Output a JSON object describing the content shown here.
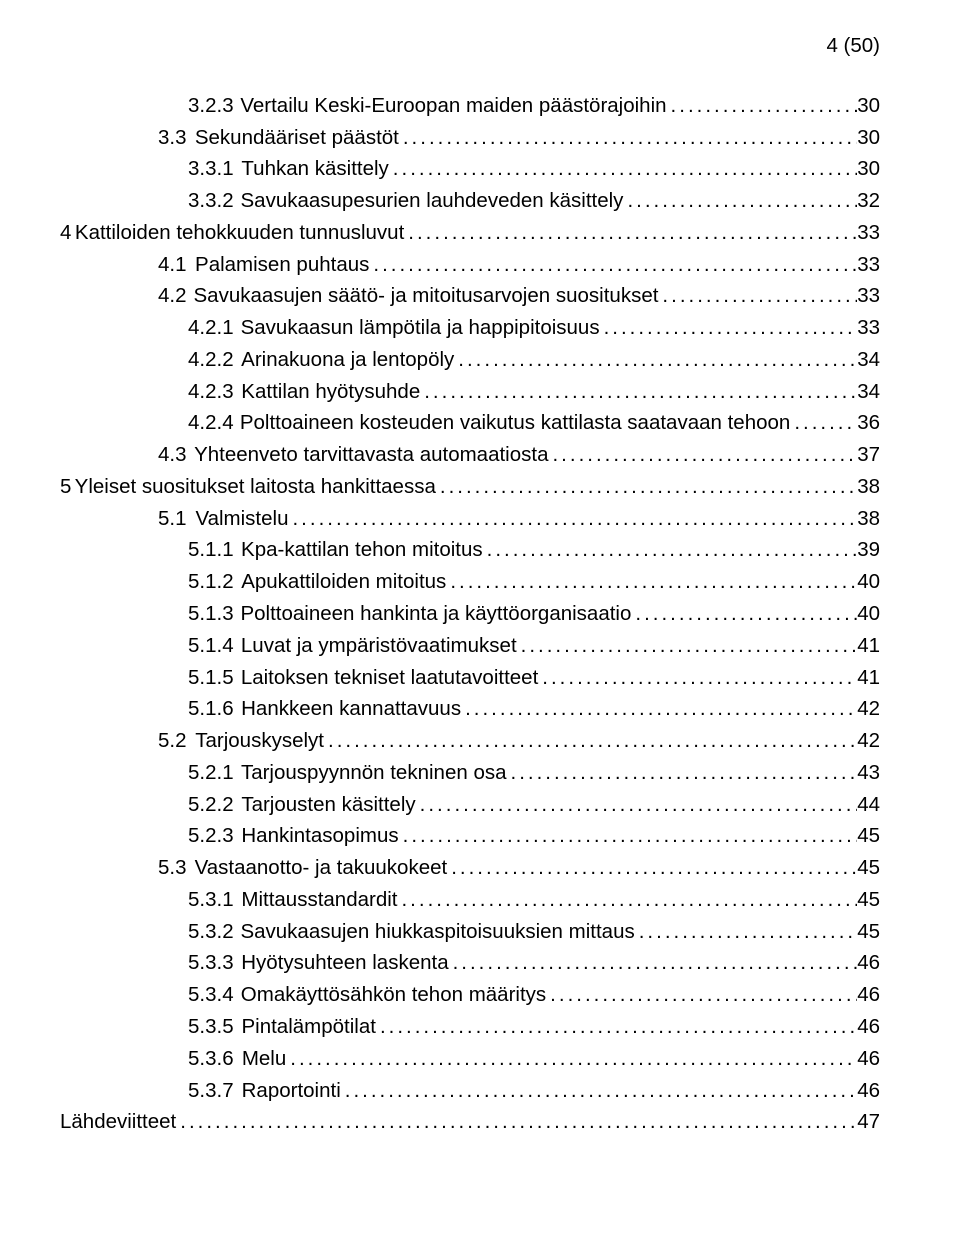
{
  "page_position": "4 (50)",
  "toc": [
    {
      "indent": 3,
      "num": "3.2.3",
      "title": "Vertailu Keski-Euroopan maiden päästörajoihin",
      "page": "30"
    },
    {
      "indent": 2,
      "num": "3.3",
      "title": "Sekundääriset päästöt",
      "page": "30"
    },
    {
      "indent": 3,
      "num": "3.3.1",
      "title": "Tuhkan käsittely",
      "page": "30"
    },
    {
      "indent": 3,
      "num": "3.3.2",
      "title": "Savukaasupesurien lauhdeveden käsittely",
      "page": "32"
    },
    {
      "indent": 0,
      "chapter": "4",
      "num": "",
      "title": "Kattiloiden tehokkuuden tunnusluvut",
      "page": "33"
    },
    {
      "indent": 2,
      "num": "4.1",
      "title": "Palamisen puhtaus",
      "page": "33"
    },
    {
      "indent": 2,
      "num": "4.2",
      "title": "Savukaasujen säätö- ja mitoitusarvojen suositukset",
      "page": "33"
    },
    {
      "indent": 3,
      "num": "4.2.1",
      "title": "Savukaasun lämpötila ja happipitoisuus",
      "page": "33"
    },
    {
      "indent": 3,
      "num": "4.2.2",
      "title": "Arinakuona ja lentopöly",
      "page": "34"
    },
    {
      "indent": 3,
      "num": "4.2.3",
      "title": "Kattilan hyötysuhde",
      "page": "34"
    },
    {
      "indent": 3,
      "num": "4.2.4",
      "title": "Polttoaineen kosteuden vaikutus kattilasta saatavaan tehoon",
      "page": "36"
    },
    {
      "indent": 2,
      "num": "4.3",
      "title": "Yhteenveto tarvittavasta automaatiosta",
      "page": "37"
    },
    {
      "indent": 0,
      "chapter": "5",
      "num": "",
      "title": "Yleiset suositukset laitosta hankittaessa",
      "page": "38"
    },
    {
      "indent": 2,
      "num": "5.1",
      "title": "Valmistelu",
      "page": "38"
    },
    {
      "indent": 3,
      "num": "5.1.1",
      "title": "Kpa-kattilan tehon mitoitus",
      "page": "39"
    },
    {
      "indent": 3,
      "num": "5.1.2",
      "title": "Apukattiloiden mitoitus",
      "page": "40"
    },
    {
      "indent": 3,
      "num": "5.1.3",
      "title": "Polttoaineen hankinta ja käyttöorganisaatio",
      "page": "40"
    },
    {
      "indent": 3,
      "num": "5.1.4",
      "title": "Luvat ja ympäristövaatimukset",
      "page": "41"
    },
    {
      "indent": 3,
      "num": "5.1.5",
      "title": "Laitoksen tekniset laatutavoitteet",
      "page": "41"
    },
    {
      "indent": 3,
      "num": "5.1.6",
      "title": "Hankkeen kannattavuus",
      "page": "42"
    },
    {
      "indent": 2,
      "num": "5.2",
      "title": "Tarjouskyselyt",
      "page": "42"
    },
    {
      "indent": 3,
      "num": "5.2.1",
      "title": "Tarjouspyynnön tekninen osa",
      "page": "43"
    },
    {
      "indent": 3,
      "num": "5.2.2",
      "title": "Tarjousten käsittely",
      "page": "44"
    },
    {
      "indent": 3,
      "num": "5.2.3",
      "title": "Hankintasopimus",
      "page": "45"
    },
    {
      "indent": 2,
      "num": "5.3",
      "title": "Vastaanotto- ja takuukokeet",
      "page": "45"
    },
    {
      "indent": 3,
      "num": "5.3.1",
      "title": "Mittausstandardit",
      "page": "45"
    },
    {
      "indent": 3,
      "num": "5.3.2",
      "title": "Savukaasujen hiukkaspitoisuuksien mittaus",
      "page": "45"
    },
    {
      "indent": 3,
      "num": "5.3.3",
      "title": "Hyötysuhteen laskenta",
      "page": "46"
    },
    {
      "indent": 3,
      "num": "5.3.4",
      "title": "Omakäyttösähkön tehon määritys",
      "page": "46"
    },
    {
      "indent": 3,
      "num": "5.3.5",
      "title": "Pintalämpötilat",
      "page": "46"
    },
    {
      "indent": 3,
      "num": "5.3.6",
      "title": "Melu",
      "page": "46"
    },
    {
      "indent": 3,
      "num": "5.3.7",
      "title": "Raportointi",
      "page": "46"
    },
    {
      "indent": 0,
      "num": "",
      "title": "Lähdeviitteet",
      "page": "47",
      "nochapter": true
    }
  ]
}
